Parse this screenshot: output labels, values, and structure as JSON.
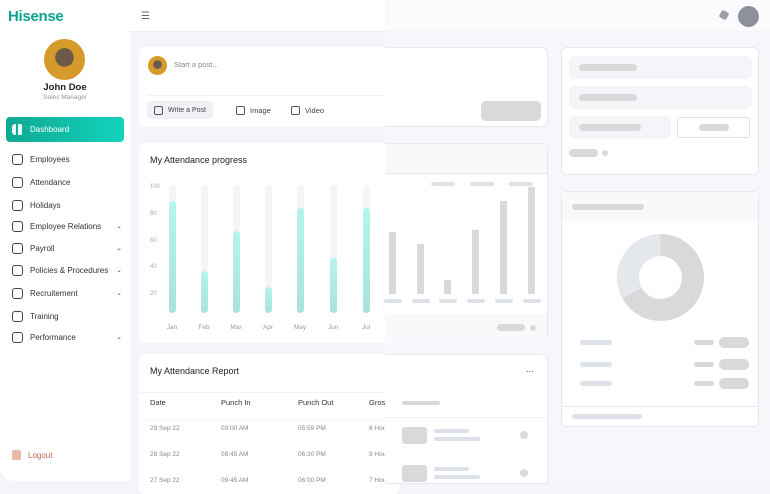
{
  "brand": {
    "logo": "Hisense",
    "accent": "#0aa58d"
  },
  "user": {
    "name": "John Doe",
    "role": "Sales Manager"
  },
  "sidebar": {
    "items": [
      {
        "label": "Dashboard",
        "icon": "grid-icon",
        "active": true,
        "expandable": false
      },
      {
        "label": "Employees",
        "icon": "users-icon",
        "expandable": false
      },
      {
        "label": "Attendance",
        "icon": "calendar-icon",
        "expandable": false
      },
      {
        "label": "Holidays",
        "icon": "holiday-icon",
        "expandable": false
      },
      {
        "label": "Employee Relations",
        "icon": "document-icon",
        "expandable": true
      },
      {
        "label": "Payroll",
        "icon": "chart-icon",
        "expandable": true
      },
      {
        "label": "Policies & Procedures",
        "icon": "book-icon",
        "expandable": true
      },
      {
        "label": "Recruitement",
        "icon": "star-icon",
        "expandable": true
      },
      {
        "label": "Training",
        "icon": "graduation-cap-icon",
        "expandable": false
      },
      {
        "label": "Performance",
        "icon": "trend-icon",
        "expandable": true
      }
    ],
    "logout": "Logout"
  },
  "post": {
    "placeholder": "Start a post...",
    "write": "Write a Post",
    "image": "Image",
    "video": "Video"
  },
  "attendance_progress": {
    "title": "My Attendance progress"
  },
  "chart_data": {
    "type": "bar",
    "title": "My Attendance progress",
    "categories": [
      "Jan",
      "Feb",
      "Mar",
      "Apr",
      "May",
      "Jun",
      "Jul"
    ],
    "values": [
      90,
      38,
      68,
      26,
      85,
      48,
      85
    ],
    "yticks": [
      100,
      80,
      60,
      40,
      20
    ],
    "ylim": [
      0,
      100
    ],
    "grid": false,
    "color": "#b5f4ec"
  },
  "report": {
    "title": "My Attendance Report",
    "menu": "...",
    "columns": [
      "Date",
      "Punch In",
      "Punch Out",
      "Gros"
    ],
    "rows": [
      [
        "29 Sep 22",
        "09:00 AM",
        "05:59 PM",
        "8 Hou"
      ],
      [
        "28 Sep 22",
        "08:45 AM",
        "06:30 PM",
        "9 Hou"
      ],
      [
        "27 Sep 22",
        "09:45 AM",
        "06:00 PM",
        "7 Hou"
      ]
    ]
  }
}
